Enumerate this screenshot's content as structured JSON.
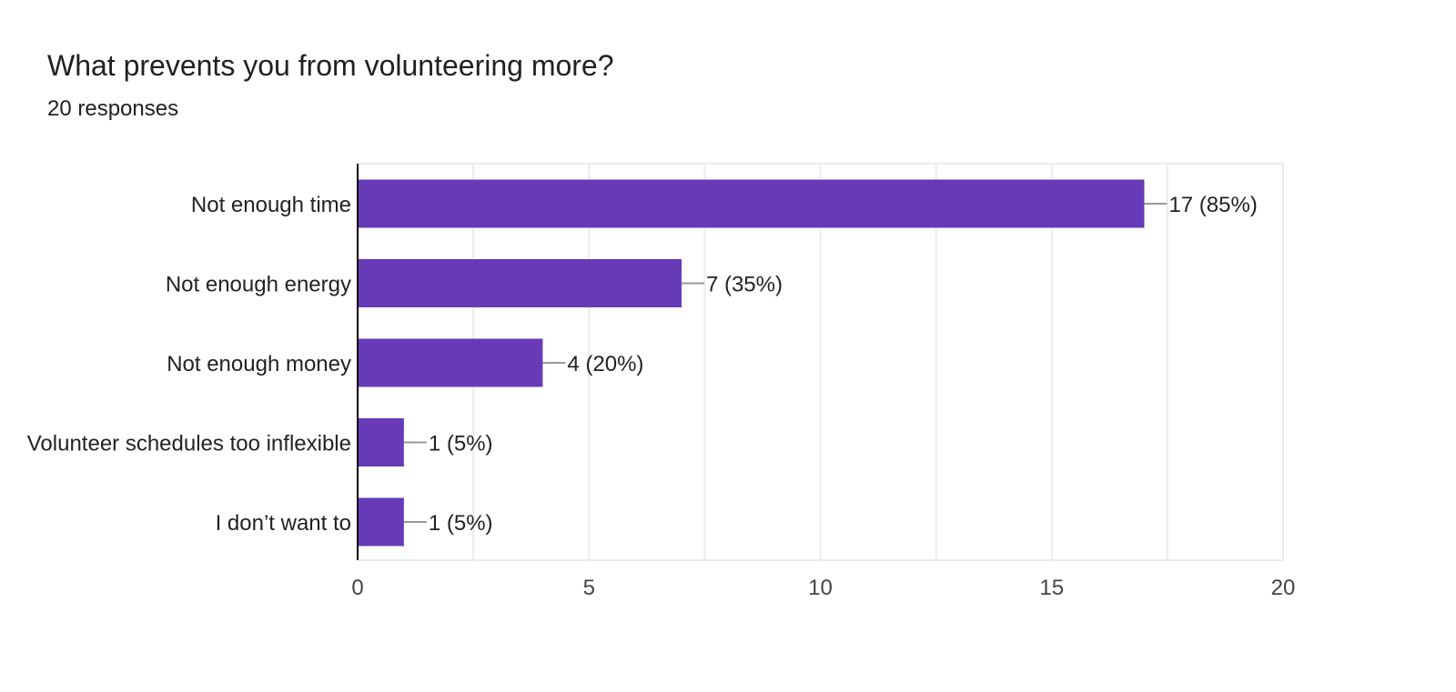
{
  "title": "What prevents you from volunteering more?",
  "subtitle": "20 responses",
  "colors": {
    "bar": "#673ab7",
    "grid": "#ebebeb",
    "axis": "#000000",
    "leader": "#999999"
  },
  "chart_data": {
    "type": "bar",
    "orientation": "horizontal",
    "categories": [
      "Not enough time",
      "Not enough energy",
      "Not enough money",
      "Volunteer schedules too inflexible",
      "I don’t want to"
    ],
    "values": [
      17,
      7,
      4,
      1,
      1
    ],
    "value_labels": [
      "17 (85%)",
      "7 (35%)",
      "4 (20%)",
      "1 (5%)",
      "1 (5%)"
    ],
    "xlim": [
      0,
      20
    ],
    "xticks": [
      0,
      5,
      10,
      15,
      20
    ],
    "xtick_labels": [
      "0",
      "5",
      "10",
      "15",
      "20"
    ],
    "minor_gridlines": [
      2.5,
      7.5,
      12.5,
      17.5
    ],
    "grid": true,
    "legend": "none"
  }
}
